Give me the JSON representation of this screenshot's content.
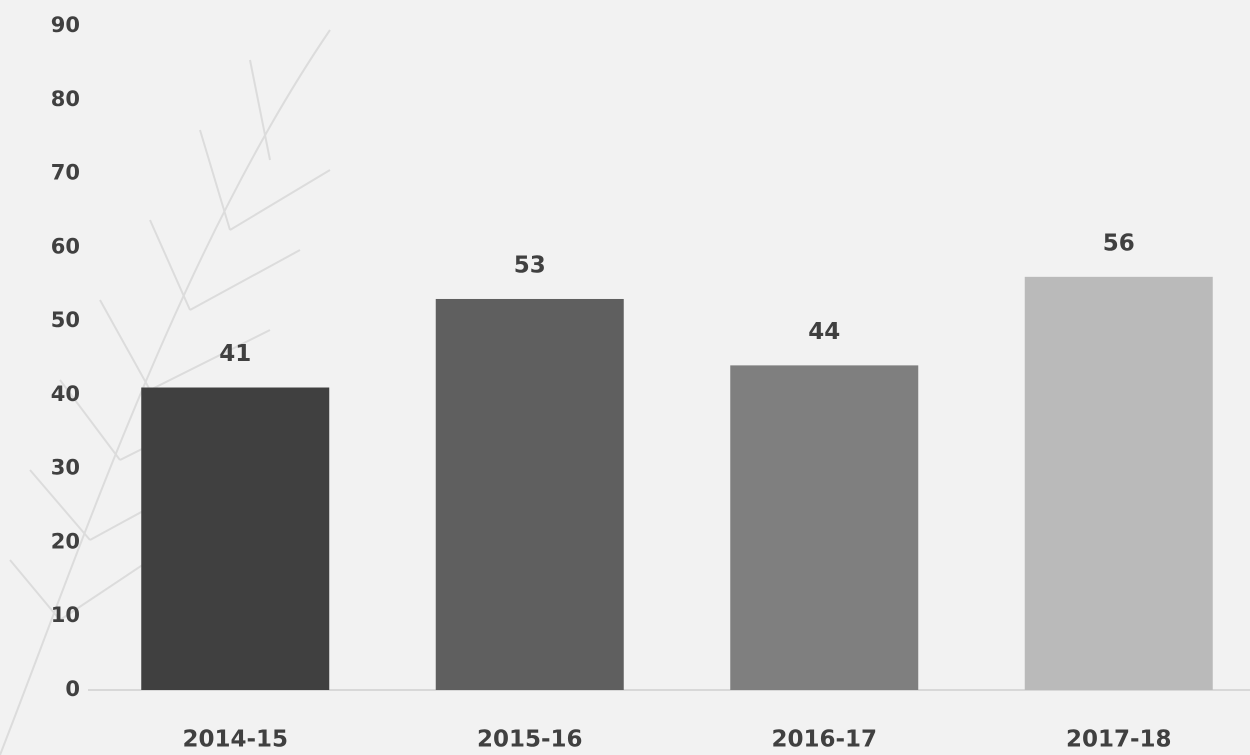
{
  "chart_data": {
    "type": "bar",
    "categories": [
      "2014-15",
      "2015-16",
      "2016-17",
      "2017-18"
    ],
    "values": [
      41,
      53,
      44,
      56
    ],
    "colors": [
      "#404040",
      "#5f5f5f",
      "#7f7f7f",
      "#bababa"
    ],
    "ylim": [
      0,
      90
    ],
    "yticks": [
      0,
      10,
      20,
      30,
      40,
      50,
      60,
      70,
      80,
      90
    ],
    "grid": false
  }
}
